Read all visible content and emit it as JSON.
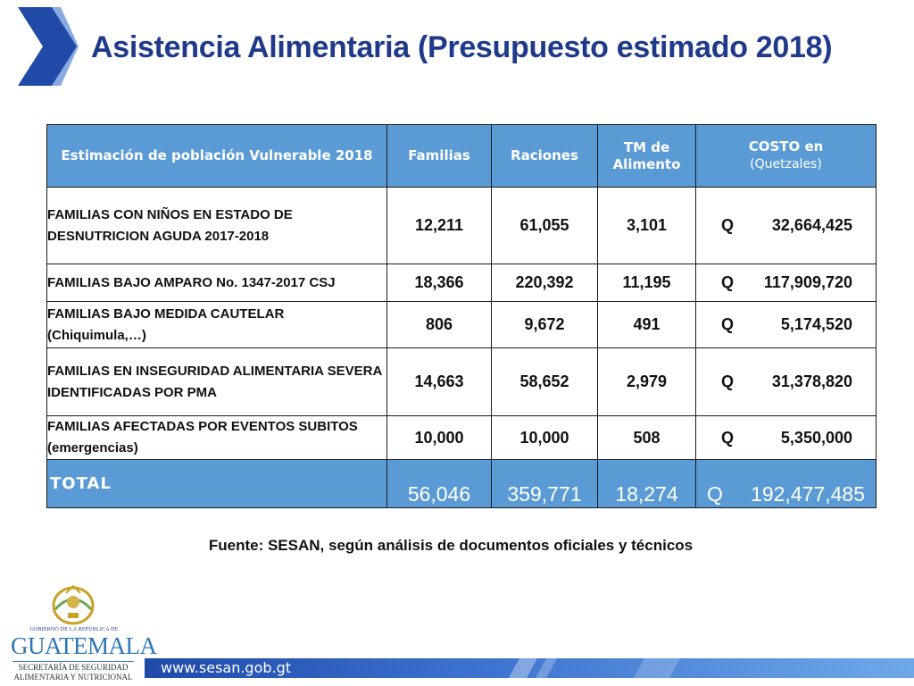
{
  "title": "Asistencia Alimentaria (Presupuesto estimado 2018)",
  "table": {
    "headers": {
      "population": "Estimación de población Vulnerable 2018",
      "families": "Familias",
      "rations": "Raciones",
      "tm_line1": "TM de",
      "tm_line2": "Alimento",
      "cost_line1": "COSTO en",
      "cost_line2": "(Quetzales)"
    },
    "rows": [
      {
        "label": "FAMILIAS CON NIÑOS EN ESTADO DE DESNUTRICION AGUDA 2017-2018",
        "families": "12,211",
        "rations": "61,055",
        "tm": "3,101",
        "currency": "Q",
        "cost": "32,664,425"
      },
      {
        "label": "FAMILIAS BAJO AMPARO No. 1347-2017 CSJ",
        "families": "18,366",
        "rations": "220,392",
        "tm": "11,195",
        "currency": "Q",
        "cost": "117,909,720"
      },
      {
        "label": "FAMILIAS BAJO MEDIDA CAUTELAR (Chiquimula,…)",
        "families": "806",
        "rations": "9,672",
        "tm": "491",
        "currency": "Q",
        "cost": "5,174,520"
      },
      {
        "label": "FAMILIAS EN INSEGURIDAD ALIMENTARIA SEVERA IDENTIFICADAS POR PMA",
        "families": "14,663",
        "rations": "58,652",
        "tm": "2,979",
        "currency": "Q",
        "cost": "31,378,820"
      },
      {
        "label": "FAMILIAS AFECTADAS POR EVENTOS SUBITOS (emergencias)",
        "families": "10,000",
        "rations": "10,000",
        "tm": "508",
        "currency": "Q",
        "cost": "5,350,000"
      }
    ],
    "total": {
      "label": "TOTAL",
      "families": "56,046",
      "rations": "359,771",
      "tm": "18,274",
      "currency": "Q",
      "cost": "192,477,485"
    }
  },
  "source": "Fuente:  SESAN, según análisis de documentos oficiales y técnicos",
  "logo": {
    "top_text": "GOBIERNO DE LA REPÚBLICA DE",
    "name": "GUATEMALA",
    "sub_line1": "SECRETARÍA DE SEGURIDAD",
    "sub_line2": "ALIMENTARIA Y NUTRICIONAL"
  },
  "footer": {
    "url": "www.sesan.gob.gt"
  },
  "colors": {
    "title": "#1f3a8a",
    "header_bg": "#5b9bd5",
    "chevron": "#1f4aa8"
  }
}
